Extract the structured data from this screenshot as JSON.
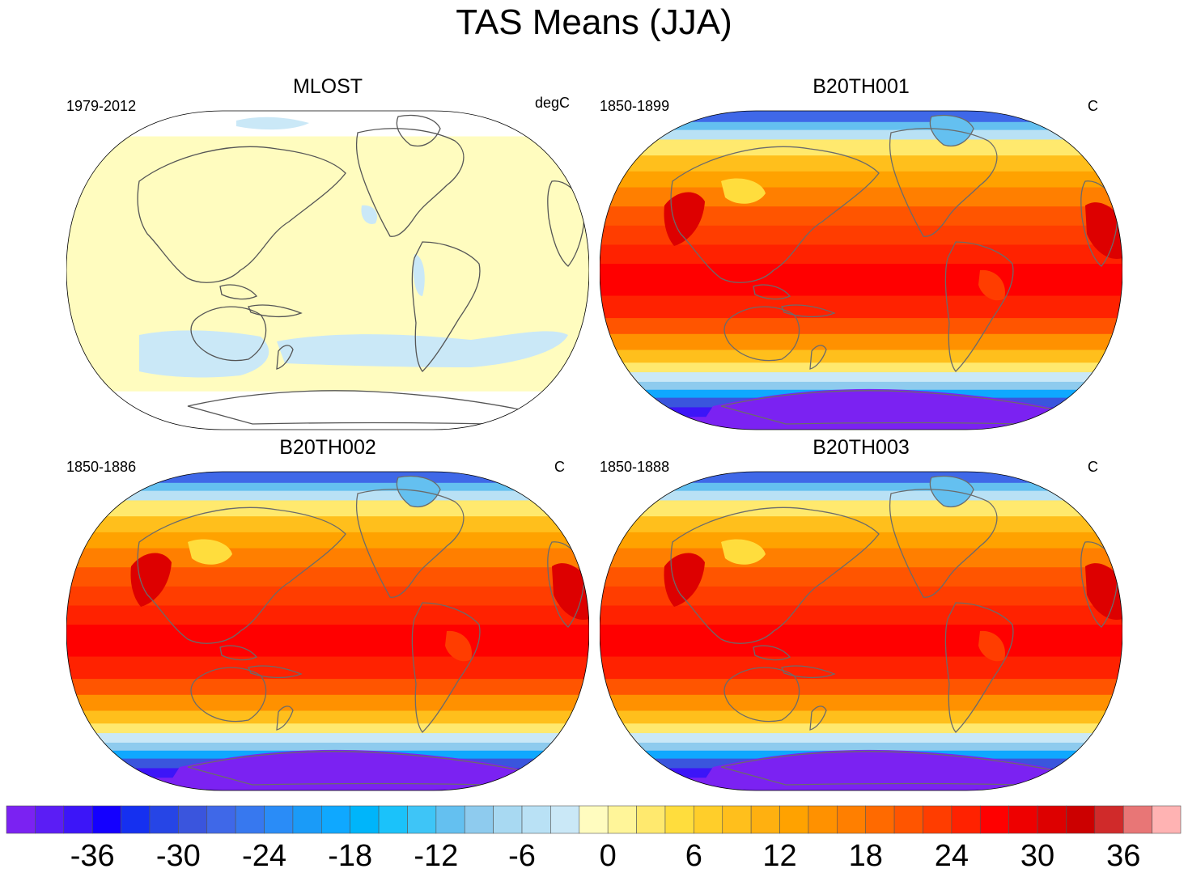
{
  "title": "TAS Means (JJA)",
  "chart_data": [
    {
      "type": "heatmap",
      "title": "MLOST",
      "left_label": "1979-2012",
      "units": "degC",
      "field": "near-uniform small positive values over land and ocean; white (no data) over Antarctica and high polar areas",
      "colorbar_index": "mostly 20 (0 to 2); patches of 19 (-2 to 0)"
    },
    {
      "type": "heatmap",
      "title": "B20TH001",
      "left_label": "1850-1899",
      "units": "C",
      "field": "warm tropics (about 26-32) cooling toward poles; Antarctica below -36; Greenland about -10"
    },
    {
      "type": "heatmap",
      "title": "B20TH002",
      "left_label": "1850-1886",
      "units": "C",
      "field": "warm tropics (about 26-32) cooling toward poles; Antarctica below -36; Greenland about -10"
    },
    {
      "type": "heatmap",
      "title": "B20TH003",
      "left_label": "1850-1888",
      "units": "C",
      "field": "warm tropics (about 26-32) cooling toward poles; Antarctica below -36; Greenland about -10"
    }
  ],
  "colorbar": {
    "levels": [
      -40,
      -38,
      -36,
      -34,
      -32,
      -30,
      -28,
      -26,
      -24,
      -22,
      -20,
      -18,
      -16,
      -14,
      -12,
      -10,
      -8,
      -6,
      -4,
      -2,
      0,
      2,
      4,
      6,
      8,
      10,
      12,
      14,
      16,
      18,
      20,
      22,
      24,
      26,
      28,
      30,
      32,
      34,
      36,
      38,
      40
    ],
    "tick_labels": [
      "-36",
      "-30",
      "-24",
      "-18",
      "-12",
      "-6",
      "0",
      "6",
      "12",
      "18",
      "24",
      "30",
      "36"
    ],
    "tick_values": [
      -36,
      -30,
      -24,
      -18,
      -12,
      -6,
      0,
      6,
      12,
      18,
      24,
      30,
      36
    ],
    "colors": [
      "#7b22f2",
      "#5b1df5",
      "#3c15f8",
      "#1400ff",
      "#1530f0",
      "#2645e6",
      "#3a55dd",
      "#3f68e8",
      "#3778ef",
      "#2a8cf7",
      "#1a9bf8",
      "#0fa8ff",
      "#00b5fa",
      "#1bc2fa",
      "#3ec5f7",
      "#64c0f0",
      "#8ecbee",
      "#a8d9f2",
      "#b9e1f5",
      "#cae8f7",
      "#fffcbf",
      "#fff599",
      "#ffe96e",
      "#ffdd3d",
      "#ffce2a",
      "#ffbf1c",
      "#ffb010",
      "#ffa200",
      "#ff9100",
      "#ff7f00",
      "#ff6a00",
      "#ff5500",
      "#ff3d00",
      "#ff2200",
      "#ff0000",
      "#ee0000",
      "#dd0000",
      "#cc0000",
      "#d02a2a",
      "#e87676",
      "#ffb3b3"
    ]
  }
}
